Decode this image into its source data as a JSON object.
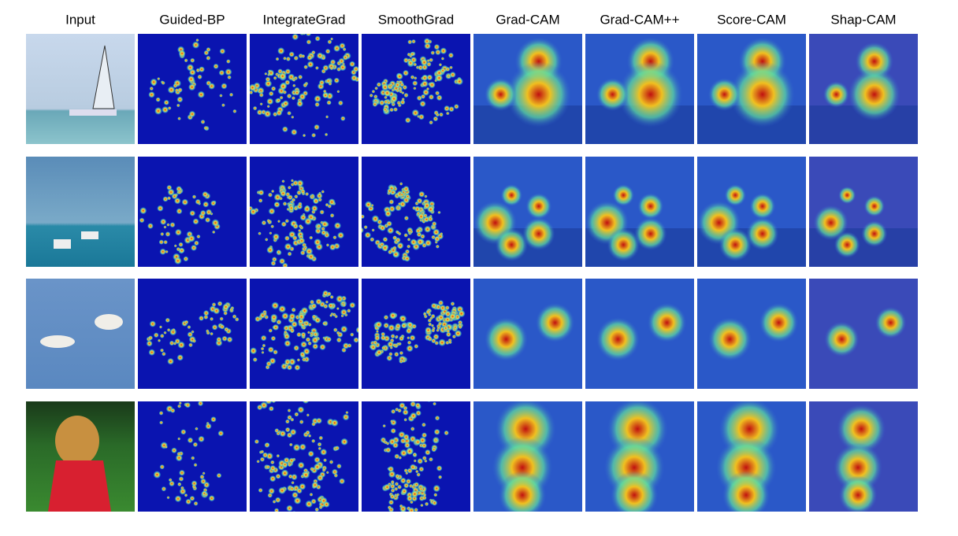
{
  "columns": [
    "Input",
    "Guided-BP",
    "IntegrateGrad",
    "SmoothGrad",
    "Grad-CAM",
    "Grad-CAM++",
    "Score-CAM",
    "Shap-CAM"
  ]
}
